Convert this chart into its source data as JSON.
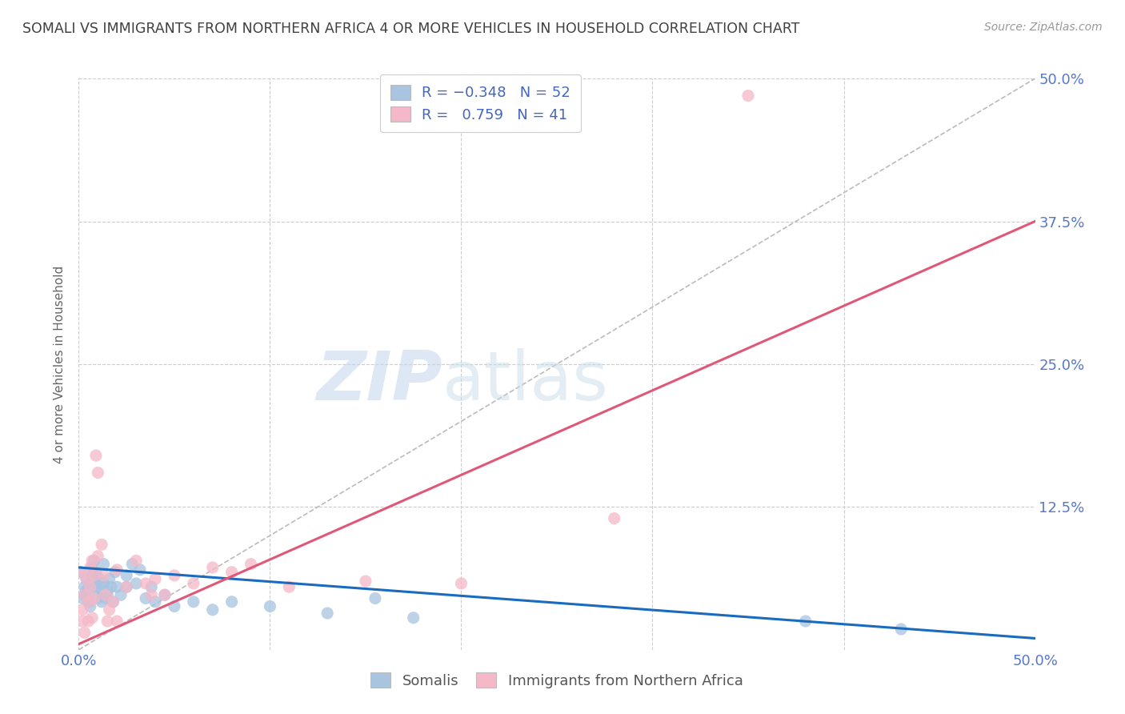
{
  "title": "SOMALI VS IMMIGRANTS FROM NORTHERN AFRICA 4 OR MORE VEHICLES IN HOUSEHOLD CORRELATION CHART",
  "source": "Source: ZipAtlas.com",
  "ylabel": "4 or more Vehicles in Household",
  "xlim": [
    0.0,
    0.5
  ],
  "ylim": [
    0.0,
    0.5
  ],
  "xticks": [
    0.0,
    0.1,
    0.2,
    0.3,
    0.4,
    0.5
  ],
  "yticks": [
    0.0,
    0.125,
    0.25,
    0.375,
    0.5
  ],
  "ytick_labels": [
    "",
    "12.5%",
    "25.0%",
    "37.5%",
    "50.0%"
  ],
  "watermark_zip": "ZIP",
  "watermark_atlas": "atlas",
  "somali_color": "#a8c4e0",
  "northafrica_color": "#f4b8c8",
  "somali_line_color": "#1a6bbf",
  "northafrica_line_color": "#e05878",
  "diagonal_color": "#bbbbbb",
  "grid_color": "#cccccc",
  "title_color": "#404040",
  "axis_label_color": "#5577cc",
  "legend_text_color": "#4466bb",
  "somali_points": [
    [
      0.001,
      0.068
    ],
    [
      0.002,
      0.045
    ],
    [
      0.003,
      0.055
    ],
    [
      0.003,
      0.048
    ],
    [
      0.004,
      0.062
    ],
    [
      0.004,
      0.052
    ],
    [
      0.005,
      0.05
    ],
    [
      0.005,
      0.042
    ],
    [
      0.006,
      0.058
    ],
    [
      0.006,
      0.038
    ],
    [
      0.007,
      0.065
    ],
    [
      0.007,
      0.072
    ],
    [
      0.008,
      0.06
    ],
    [
      0.008,
      0.078
    ],
    [
      0.009,
      0.055
    ],
    [
      0.009,
      0.068
    ],
    [
      0.01,
      0.052
    ],
    [
      0.01,
      0.045
    ],
    [
      0.011,
      0.062
    ],
    [
      0.011,
      0.058
    ],
    [
      0.012,
      0.048
    ],
    [
      0.012,
      0.042
    ],
    [
      0.013,
      0.058
    ],
    [
      0.013,
      0.075
    ],
    [
      0.014,
      0.045
    ],
    [
      0.015,
      0.052
    ],
    [
      0.015,
      0.048
    ],
    [
      0.016,
      0.062
    ],
    [
      0.017,
      0.055
    ],
    [
      0.018,
      0.042
    ],
    [
      0.019,
      0.068
    ],
    [
      0.02,
      0.055
    ],
    [
      0.022,
      0.048
    ],
    [
      0.025,
      0.065
    ],
    [
      0.025,
      0.055
    ],
    [
      0.028,
      0.075
    ],
    [
      0.03,
      0.058
    ],
    [
      0.032,
      0.07
    ],
    [
      0.035,
      0.045
    ],
    [
      0.038,
      0.055
    ],
    [
      0.04,
      0.042
    ],
    [
      0.045,
      0.048
    ],
    [
      0.05,
      0.038
    ],
    [
      0.06,
      0.042
    ],
    [
      0.07,
      0.035
    ],
    [
      0.08,
      0.042
    ],
    [
      0.1,
      0.038
    ],
    [
      0.13,
      0.032
    ],
    [
      0.155,
      0.045
    ],
    [
      0.175,
      0.028
    ],
    [
      0.38,
      0.025
    ],
    [
      0.43,
      0.018
    ]
  ],
  "northafrica_points": [
    [
      0.001,
      0.068
    ],
    [
      0.002,
      0.035
    ],
    [
      0.002,
      0.025
    ],
    [
      0.003,
      0.048
    ],
    [
      0.003,
      0.015
    ],
    [
      0.004,
      0.062
    ],
    [
      0.005,
      0.025
    ],
    [
      0.005,
      0.042
    ],
    [
      0.006,
      0.072
    ],
    [
      0.006,
      0.055
    ],
    [
      0.007,
      0.028
    ],
    [
      0.007,
      0.078
    ],
    [
      0.008,
      0.065
    ],
    [
      0.008,
      0.045
    ],
    [
      0.009,
      0.17
    ],
    [
      0.01,
      0.155
    ],
    [
      0.01,
      0.082
    ],
    [
      0.012,
      0.092
    ],
    [
      0.013,
      0.065
    ],
    [
      0.014,
      0.048
    ],
    [
      0.015,
      0.025
    ],
    [
      0.016,
      0.035
    ],
    [
      0.018,
      0.042
    ],
    [
      0.02,
      0.025
    ],
    [
      0.02,
      0.07
    ],
    [
      0.025,
      0.055
    ],
    [
      0.03,
      0.078
    ],
    [
      0.035,
      0.058
    ],
    [
      0.038,
      0.048
    ],
    [
      0.04,
      0.062
    ],
    [
      0.045,
      0.048
    ],
    [
      0.05,
      0.065
    ],
    [
      0.06,
      0.058
    ],
    [
      0.07,
      0.072
    ],
    [
      0.08,
      0.068
    ],
    [
      0.09,
      0.075
    ],
    [
      0.11,
      0.055
    ],
    [
      0.15,
      0.06
    ],
    [
      0.2,
      0.058
    ],
    [
      0.28,
      0.115
    ],
    [
      0.35,
      0.485
    ]
  ],
  "somali_line_x": [
    0.0,
    0.5
  ],
  "somali_line_y": [
    0.072,
    0.01
  ],
  "northafrica_line_x": [
    0.0,
    0.5
  ],
  "northafrica_line_y": [
    0.005,
    0.375
  ]
}
